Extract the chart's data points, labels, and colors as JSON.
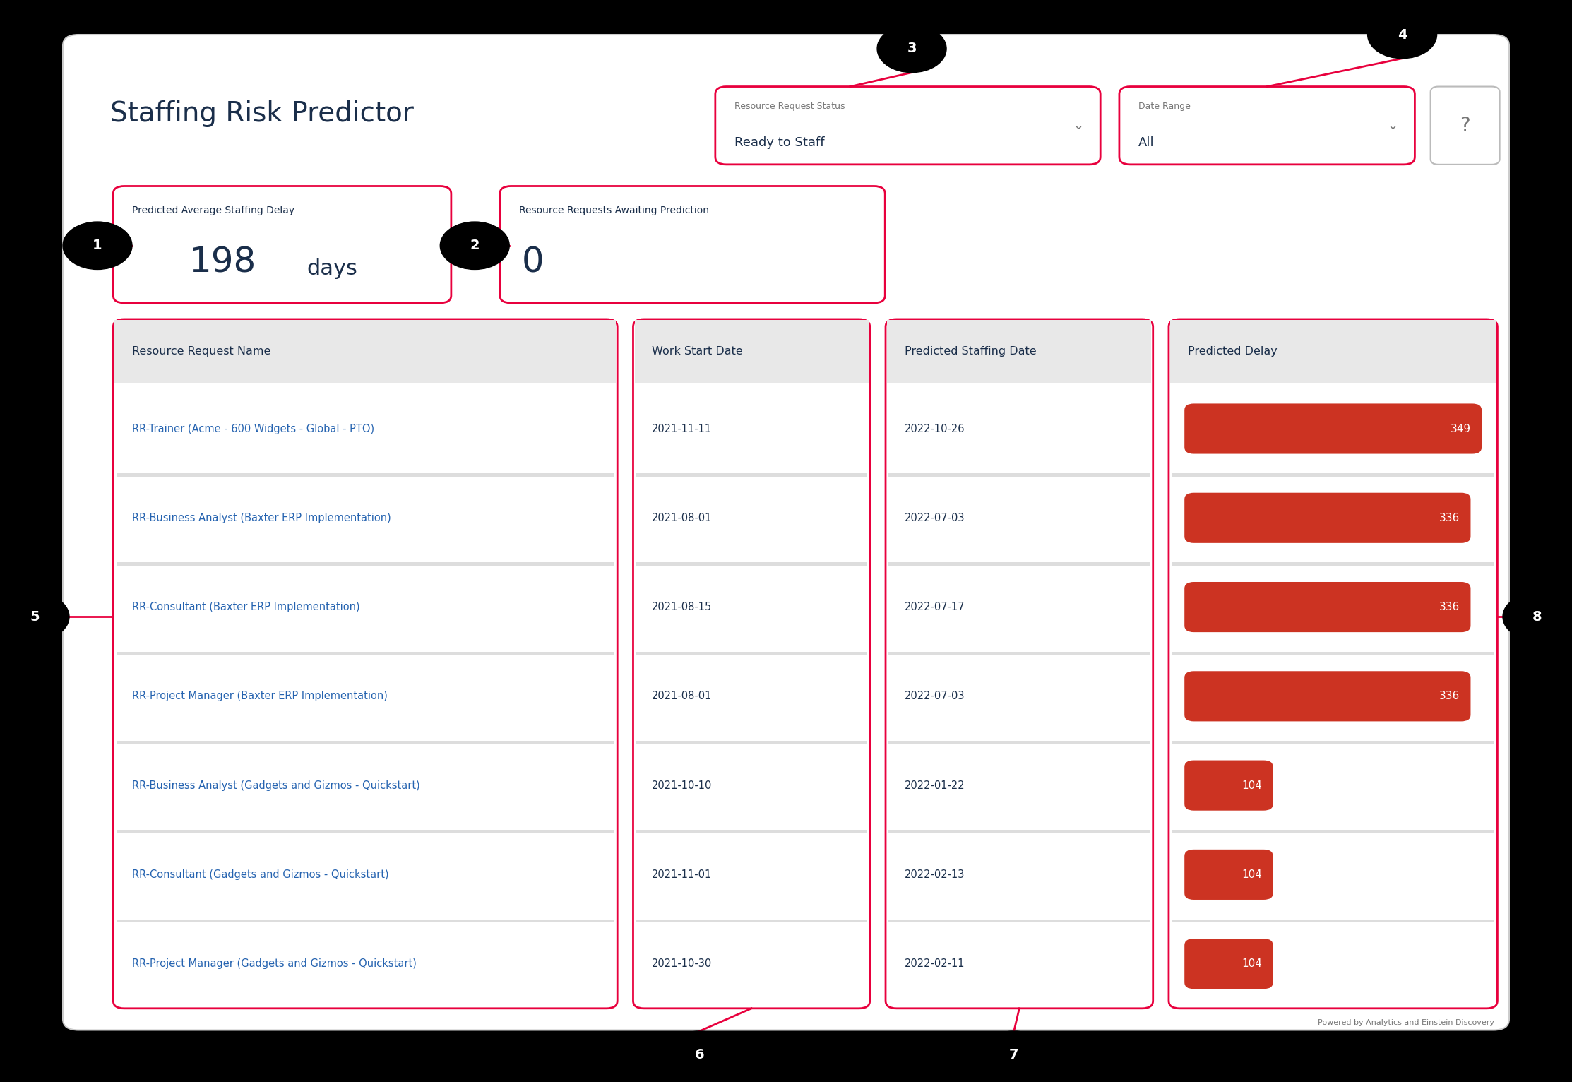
{
  "title": "Staffing Risk Predictor",
  "bg_color": "#000000",
  "dashboard_bg": "#ffffff",
  "title_color": "#1a2e4a",
  "red_border": "#e8003d",
  "header_bg": "#e8e8e8",
  "blue_link": "#2563b0",
  "dark_text": "#1a2e4a",
  "gray_text": "#777777",
  "bar_color": "#cc3322",
  "widget1_label": "Predicted Average Staffing Delay",
  "widget1_value": "198",
  "widget1_unit": "days",
  "widget2_label": "Resource Requests Awaiting Prediction",
  "widget2_value": "0",
  "dropdown1_label": "Resource Request Status",
  "dropdown1_value": "Ready to Staff",
  "dropdown2_label": "Date Range",
  "dropdown2_value": "All",
  "col1_header": "Resource Request Name",
  "col2_header": "Work Start Date",
  "col3_header": "Predicted Staffing Date",
  "col4_header": "Predicted Delay",
  "footer_text": "Powered by Analytics and Einstein Discovery",
  "rows": [
    [
      "RR-Trainer (Acme - 600 Widgets - Global - PTO)",
      "2021-11-11",
      "2022-10-26",
      349
    ],
    [
      "RR-Business Analyst (Baxter ERP Implementation)",
      "2021-08-01",
      "2022-07-03",
      336
    ],
    [
      "RR-Consultant (Baxter ERP Implementation)",
      "2021-08-15",
      "2022-07-17",
      336
    ],
    [
      "RR-Project Manager (Baxter ERP Implementation)",
      "2021-08-01",
      "2022-07-03",
      336
    ],
    [
      "RR-Business Analyst (Gadgets and Gizmos - Quickstart)",
      "2021-10-10",
      "2022-01-22",
      104
    ],
    [
      "RR-Consultant (Gadgets and Gizmos - Quickstart)",
      "2021-11-01",
      "2022-02-13",
      104
    ],
    [
      "RR-Project Manager (Gadgets and Gizmos - Quickstart)",
      "2021-10-30",
      "2022-02-11",
      104
    ]
  ],
  "max_delay": 349,
  "callout_numbers": [
    "1",
    "2",
    "3",
    "4",
    "5",
    "6",
    "7",
    "8"
  ]
}
